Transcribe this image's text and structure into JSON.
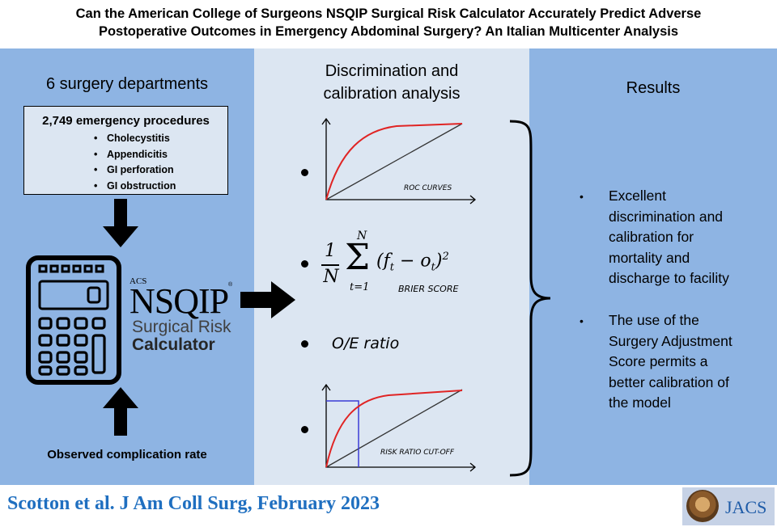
{
  "title": {
    "line1": "Can the American College of Surgeons NSQIP Surgical Risk Calculator Accurately Predict Adverse",
    "line2": "Postoperative Outcomes in Emergency Abdominal Surgery? An Italian Multicenter Analysis"
  },
  "left": {
    "departments": "6 surgery departments",
    "box_title": "2,749 emergency procedures",
    "procedures": [
      "Cholecystitis",
      "Appendicitis",
      "GI perforation",
      "GI obstruction"
    ],
    "logo_acs": "ACS",
    "logo_nsqip": "NSQIP",
    "logo_reg": "®",
    "calc_line1": "Surgical Risk",
    "calc_line2": "Calculator",
    "observed": "Observed complication rate"
  },
  "middle": {
    "heading_line1": "Discrimination and",
    "heading_line2": "calibration analysis",
    "roc_label": "ROC CURVES",
    "brier_label": "BRIER  SCORE",
    "brier_frac_num": "1",
    "brier_frac_den": "N",
    "brier_sum_top": "N",
    "brier_sum_bottom": "t=1",
    "brier_body": "(f",
    "brier_sub1": "t",
    "brier_minus": "− o",
    "brier_sub2": "t",
    "brier_close": ")",
    "brier_exp": "2",
    "oe_label": "O/E ratio",
    "cutoff_label": "RISK  RATIO  CUT-OFF"
  },
  "right": {
    "heading": "Results",
    "bullets": [
      [
        "Excellent",
        "discrimination and",
        "calibration for",
        "mortality and",
        "discharge to facility"
      ],
      [
        "The use of the",
        "Surgery Adjustment",
        "Score permits a",
        "better calibration of",
        "the model"
      ]
    ]
  },
  "footer": {
    "citation": "Scotton et al. J Am Coll Surg, February 2023",
    "journal": "JACS"
  },
  "colors": {
    "panel_blue": "#8eb4e3",
    "panel_light": "#dce6f2",
    "curve_red": "#e02424",
    "cutoff_blue": "#3b3bd6",
    "citation_blue": "#1f6fc0"
  }
}
